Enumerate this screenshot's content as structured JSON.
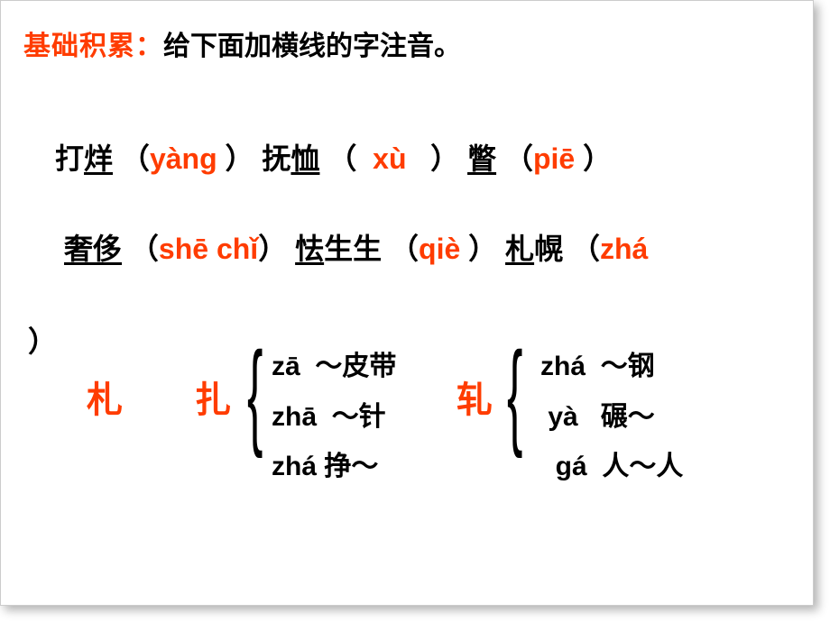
{
  "colors": {
    "accent": "#ff3c00",
    "text": "#000000",
    "background": "#ffffff"
  },
  "title": {
    "prefix": "基础积累：",
    "rest": "给下面加横线的字注音。"
  },
  "line1": {
    "w1_pre": "打",
    "w1_ul": "烊",
    "w1_ans": "yàng",
    "w2_pre": "抚",
    "w2_ul": "恤",
    "w2_ans": "xù",
    "w3_ul": "瞥",
    "w3_ans": "piē"
  },
  "line2": {
    "w1_ul": "奢侈",
    "w1_ans": "shē chǐ",
    "w2_ul": "怯",
    "w2_post": "生生",
    "w2_ans": "qiè",
    "w3_ul": "札",
    "w3_post": "幌",
    "w3_ans": "zhá"
  },
  "close_paren": "）",
  "poly": {
    "char1": "札",
    "char2": "扎",
    "char3": "轧",
    "group_zha": [
      {
        "pinyin": "zā",
        "word": "～皮带"
      },
      {
        "pinyin": "zhā",
        "word": "～针"
      },
      {
        "pinyin": "zhá",
        "word": "挣～"
      }
    ],
    "group_ya": [
      {
        "pinyin": "zhá",
        "word": "～钢"
      },
      {
        "pinyin": "yà",
        "word": "碾～"
      },
      {
        "pinyin": "gá",
        "word": "人～人"
      }
    ]
  }
}
